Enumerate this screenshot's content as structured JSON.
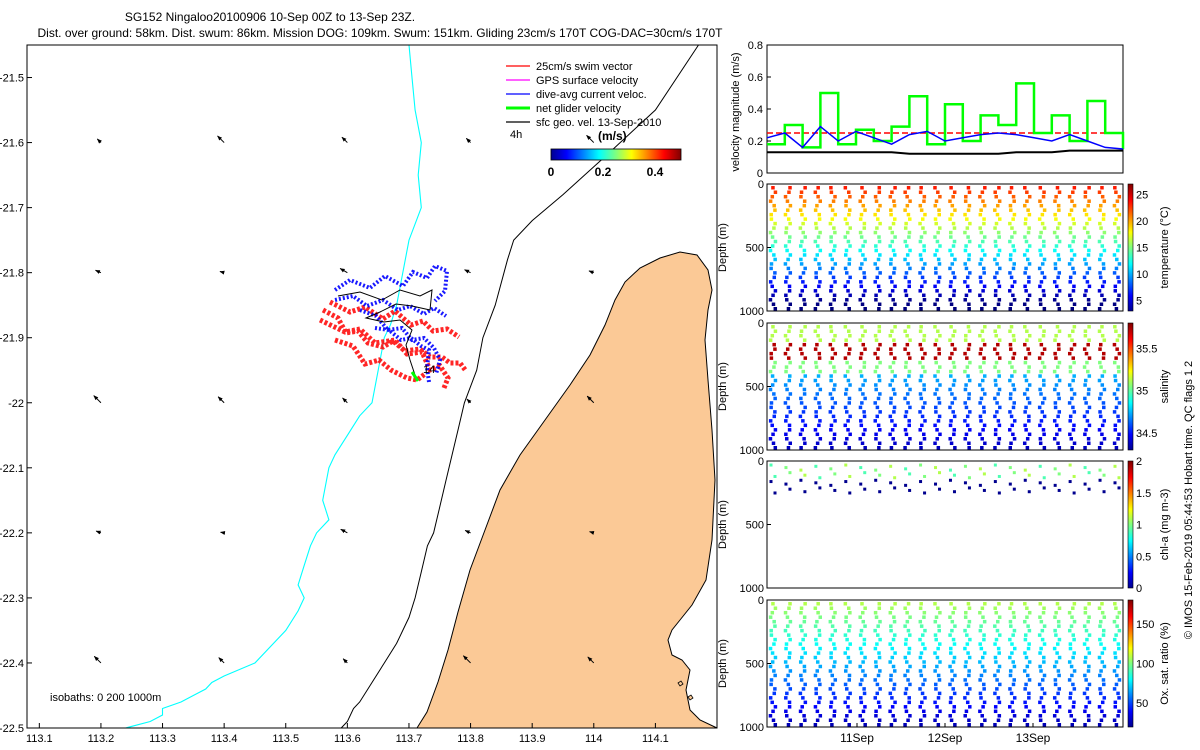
{
  "title": {
    "line1": "SG152 Ningaloo20100906 10-Sep 00Z to 13-Sep 23Z.",
    "line2": "Dist. over ground: 58km. Dist. swum: 86km. Mission DOG: 109km. Swum: 151km. Gliding 23cm/s 170T COG-DAC=30cm/s 170T"
  },
  "colors": {
    "land": "#fbc996",
    "coast": "#000000",
    "isobath200": "#00ffff",
    "isobath1000": "#000000",
    "swim": "#ff0000",
    "gps": "#ff00ff",
    "dac": "#0000ff",
    "net": "#00ff00",
    "sfc": "#000000"
  },
  "map": {
    "isobaths_label": "isobaths: 0   200  1000m",
    "end_label": "14",
    "time_scale_label": "4h",
    "colorbar": {
      "unit": "(m/s)",
      "ticks": [
        "0",
        "0.2",
        "0.4"
      ],
      "min": 0,
      "max": 0.5
    },
    "legend": [
      {
        "label": "25cm/s swim vector",
        "color": "#ff0000"
      },
      {
        "label": "GPS surface velocity",
        "color": "#ff00ff"
      },
      {
        "label": "dive-avg current veloc.",
        "color": "#0000ff"
      },
      {
        "label": "net glider velocity",
        "color": "#00ff00"
      },
      {
        "label": "sfc geo. vel. 13-Sep-2010",
        "color": "#000000"
      }
    ]
  },
  "footer_credit": "© IMOS 15-Feb-2019 05:44:53 Hobart time. QC flags 1  2",
  "chart_data": [
    {
      "type": "line",
      "title": "Glider track map",
      "xlabel": "",
      "ylabel": "",
      "xlim": [
        113.08,
        114.2
      ],
      "ylim": [
        -22.5,
        -21.45
      ],
      "x_ticks": [
        "113.1",
        "113.2",
        "113.3",
        "113.4",
        "113.5",
        "113.6",
        "113.7",
        "113.8",
        "113.9",
        "114",
        "114.1"
      ],
      "y_ticks": [
        "-21.5",
        "-21.6",
        "-21.7",
        "-21.8",
        "-21.9",
        "-22",
        "-22.1",
        "-22.2",
        "-22.3",
        "-22.4",
        "-22.5"
      ],
      "series": [
        {
          "name": "200m isobath",
          "lon": [
            113.7,
            113.705,
            113.71,
            113.72,
            113.715,
            113.72,
            113.7,
            113.69,
            113.68,
            113.67,
            113.66,
            113.65,
            113.64,
            113.62,
            113.6,
            113.58,
            113.57,
            113.56,
            113.57,
            113.55,
            113.54,
            113.53,
            113.52,
            113.53,
            113.52,
            113.5,
            113.45,
            113.4,
            113.38,
            113.37,
            113.35,
            113.33,
            113.3,
            113.3,
            113.28,
            113.24
          ],
          "lat": [
            -21.45,
            -21.5,
            -21.55,
            -21.6,
            -21.65,
            -21.7,
            -21.75,
            -21.8,
            -21.85,
            -21.88,
            -21.9,
            -21.95,
            -22.0,
            -22.02,
            -22.05,
            -22.08,
            -22.1,
            -22.15,
            -22.18,
            -22.2,
            -22.22,
            -22.25,
            -22.28,
            -22.3,
            -22.32,
            -22.35,
            -22.4,
            -22.42,
            -22.43,
            -22.44,
            -22.45,
            -22.46,
            -22.47,
            -22.48,
            -22.49,
            -22.5
          ]
        },
        {
          "name": "1000m isobath",
          "lon": [
            114.17,
            114.1,
            114.02,
            113.95,
            113.9,
            113.87,
            113.86,
            113.84,
            113.82,
            113.81,
            113.79,
            113.78,
            113.77,
            113.76,
            113.75,
            113.74,
            113.73,
            113.72,
            113.71,
            113.7,
            113.69,
            113.68,
            113.66,
            113.64,
            113.62,
            113.61,
            113.6,
            113.59
          ],
          "lat": [
            -21.45,
            -21.55,
            -21.62,
            -21.68,
            -21.72,
            -21.75,
            -21.78,
            -21.85,
            -21.9,
            -21.95,
            -22.0,
            -22.04,
            -22.08,
            -22.12,
            -22.16,
            -22.2,
            -22.22,
            -22.26,
            -22.3,
            -22.33,
            -22.35,
            -22.37,
            -22.4,
            -22.43,
            -22.46,
            -22.47,
            -22.49,
            -22.5
          ]
        }
      ]
    },
    {
      "type": "line",
      "title": "",
      "xlabel": "",
      "ylabel": "velocity magnitude (m/s)",
      "ylim": [
        0,
        0.8
      ],
      "y_ticks": [
        "0",
        "0.2",
        "0.4",
        "0.6",
        "0.8"
      ],
      "x": [
        0,
        0.05,
        0.1,
        0.15,
        0.2,
        0.25,
        0.3,
        0.35,
        0.4,
        0.45,
        0.5,
        0.55,
        0.6,
        0.65,
        0.7,
        0.75,
        0.8,
        0.85,
        0.9,
        0.95,
        1.0
      ],
      "series": [
        {
          "name": "swim 25cm/s",
          "values": [
            0.25,
            0.25,
            0.25,
            0.25,
            0.25,
            0.25,
            0.25,
            0.25,
            0.25,
            0.25,
            0.25,
            0.25,
            0.25,
            0.25,
            0.25,
            0.25,
            0.25,
            0.25,
            0.25,
            0.25,
            0.25
          ]
        },
        {
          "name": "net glider velocity",
          "values": [
            0.18,
            0.3,
            0.16,
            0.5,
            0.18,
            0.27,
            0.2,
            0.29,
            0.48,
            0.18,
            0.43,
            0.2,
            0.36,
            0.3,
            0.56,
            0.25,
            0.36,
            0.2,
            0.45,
            0.25,
            0.15
          ]
        },
        {
          "name": "dive-avg current",
          "values": [
            0.22,
            0.25,
            0.16,
            0.29,
            0.2,
            0.26,
            0.22,
            0.18,
            0.24,
            0.26,
            0.2,
            0.22,
            0.24,
            0.25,
            0.24,
            0.22,
            0.2,
            0.24,
            0.2,
            0.16,
            0.15
          ]
        },
        {
          "name": "sfc geo. vel.",
          "values": [
            0.13,
            0.13,
            0.13,
            0.13,
            0.13,
            0.13,
            0.13,
            0.13,
            0.12,
            0.12,
            0.12,
            0.12,
            0.12,
            0.12,
            0.13,
            0.13,
            0.13,
            0.14,
            0.14,
            0.14,
            0.14
          ]
        }
      ]
    },
    {
      "type": "scatter",
      "title": "",
      "xlabel": "",
      "ylabel": "Depth (m)",
      "ylim": [
        1000,
        0
      ],
      "y_ticks": [
        "0",
        "500",
        "1000"
      ],
      "colorbar_label": "temperature (°C)",
      "colorbar_ticks": [
        "5",
        "10",
        "15",
        "20",
        "25"
      ],
      "colorbar_range": [
        3,
        27
      ]
    },
    {
      "type": "scatter",
      "title": "",
      "xlabel": "",
      "ylabel": "Depth (m)",
      "ylim": [
        1000,
        0
      ],
      "y_ticks": [
        "0",
        "500",
        "1000"
      ],
      "colorbar_label": "salinity",
      "colorbar_ticks": [
        "34.5",
        "35",
        "35.5"
      ],
      "colorbar_range": [
        34.3,
        35.8
      ]
    },
    {
      "type": "scatter",
      "title": "",
      "xlabel": "",
      "ylabel": "Depth (m)",
      "ylim": [
        1000,
        0
      ],
      "y_ticks": [
        "0",
        "500",
        "1000"
      ],
      "colorbar_label": "chl-a (mg m-3)",
      "colorbar_ticks": [
        "0",
        "0.5",
        "1",
        "1.5",
        "2"
      ],
      "colorbar_range": [
        0,
        2
      ]
    },
    {
      "type": "scatter",
      "title": "",
      "xlabel": "",
      "ylabel": "Depth (m)",
      "ylim": [
        1000,
        0
      ],
      "y_ticks": [
        "0",
        "500",
        "1000"
      ],
      "x_ticks": [
        "11Sep",
        "12Sep",
        "13Sep"
      ],
      "colorbar_label": "Ox. sat. ratio (%)",
      "colorbar_ticks": [
        "50",
        "100",
        "150"
      ],
      "colorbar_range": [
        20,
        180
      ]
    }
  ]
}
